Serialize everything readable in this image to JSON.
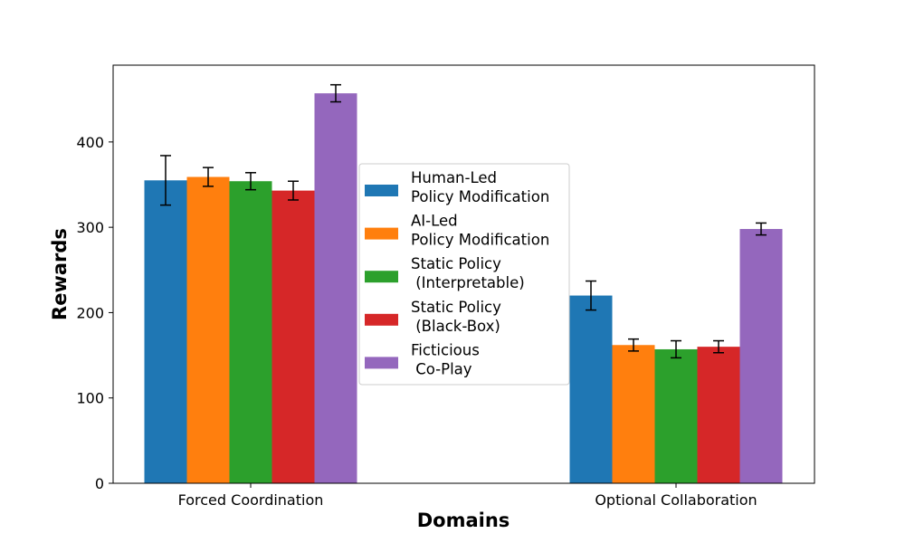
{
  "chart_data": {
    "type": "bar",
    "title": "",
    "xlabel": "Domains",
    "ylabel": "Rewards",
    "categories": [
      "Forced Coordination",
      "Optional Collaboration"
    ],
    "ylim": [
      0,
      490
    ],
    "yticks": [
      0,
      100,
      200,
      300,
      400
    ],
    "grid": false,
    "legend_position": "center",
    "series": [
      {
        "name": "Human-Led\nPolicy Modification",
        "color": "#1f77b4",
        "values": [
          355,
          220
        ],
        "errors": [
          29,
          17
        ]
      },
      {
        "name": "AI-Led\nPolicy Modification",
        "color": "#ff7f0e",
        "values": [
          359,
          162
        ],
        "errors": [
          11,
          7
        ]
      },
      {
        "name": "Static Policy\n (Interpretable)",
        "color": "#2ca02c",
        "values": [
          354,
          157
        ],
        "errors": [
          10,
          10
        ]
      },
      {
        "name": "Static Policy\n (Black-Box)",
        "color": "#d62728",
        "values": [
          343,
          160
        ],
        "errors": [
          11,
          7
        ]
      },
      {
        "name": "Ficticious\n Co-Play",
        "color": "#9467bd",
        "values": [
          457,
          298
        ],
        "errors": [
          10,
          7
        ]
      }
    ]
  }
}
